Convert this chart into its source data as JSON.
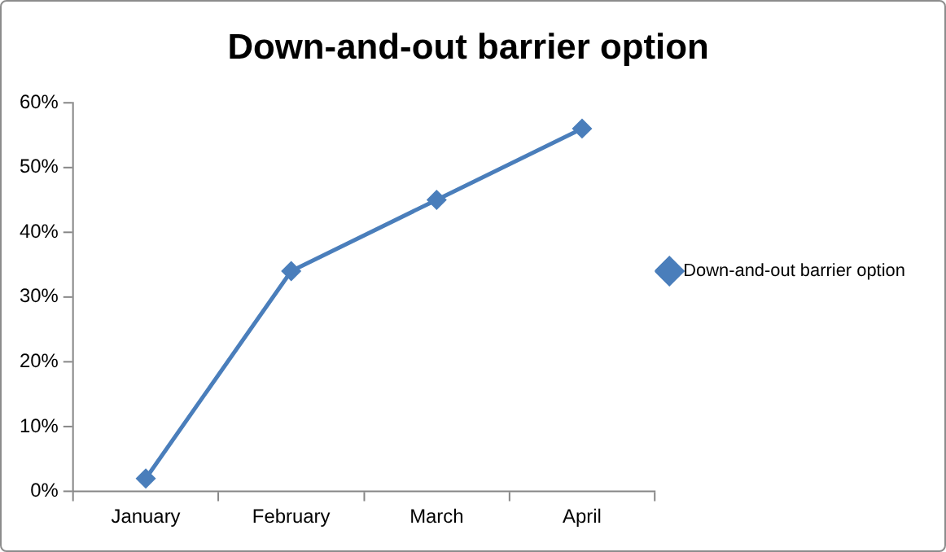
{
  "chart_data": {
    "type": "line",
    "title": "Down-and-out barrier option",
    "categories": [
      "January",
      "February",
      "March",
      "April"
    ],
    "series": [
      {
        "name": "Down-and-out barrier option",
        "color": "#4a7ebb",
        "values": [
          2,
          34,
          45,
          56
        ]
      }
    ],
    "ylim": [
      0,
      60
    ],
    "yticks": [
      {
        "value": 0,
        "label": "0%"
      },
      {
        "value": 10,
        "label": "10%"
      },
      {
        "value": 20,
        "label": "20%"
      },
      {
        "value": 30,
        "label": "30%"
      },
      {
        "value": 40,
        "label": "40%"
      },
      {
        "value": 50,
        "label": "50%"
      },
      {
        "value": 60,
        "label": "60%"
      }
    ],
    "grid": false,
    "legend": "right",
    "marker": "diamond",
    "line_style": "solid"
  }
}
